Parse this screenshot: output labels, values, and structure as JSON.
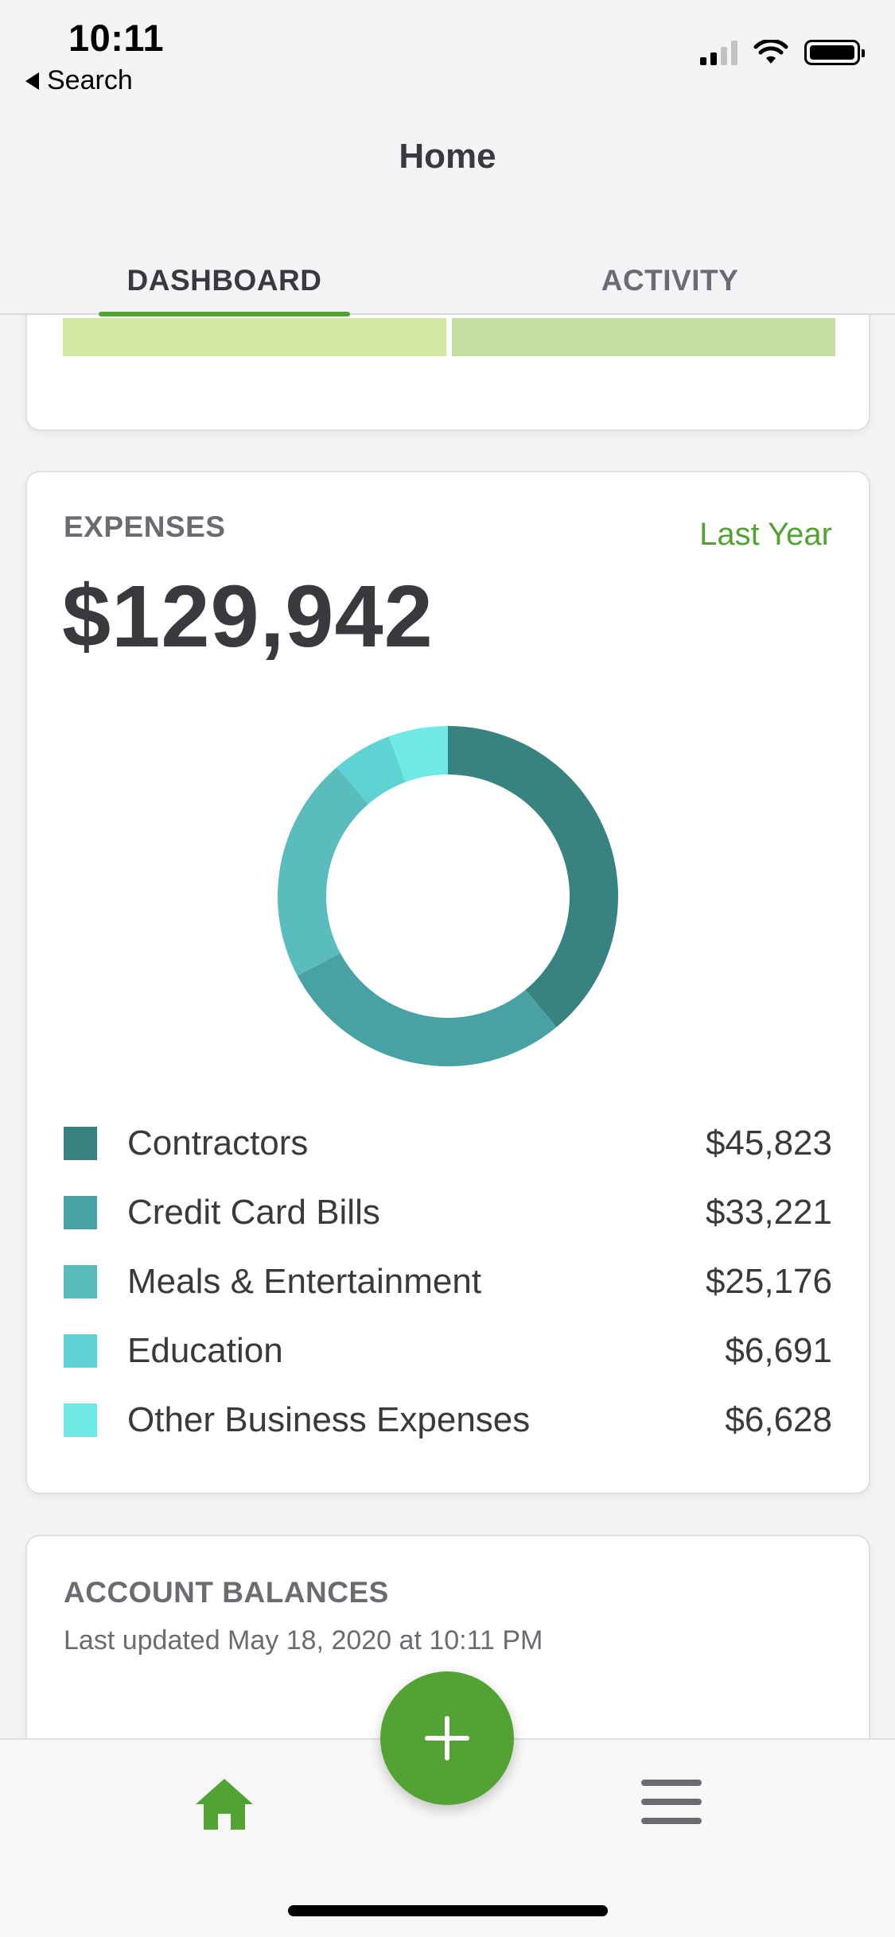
{
  "status_bar": {
    "time": "10:11",
    "back_label": "Search",
    "icons": [
      "signal-icon",
      "wifi-icon",
      "battery-icon"
    ]
  },
  "header": {
    "title": "Home",
    "tabs": [
      {
        "label": "DASHBOARD",
        "selected": true
      },
      {
        "label": "ACTIVITY",
        "selected": false
      }
    ]
  },
  "expenses": {
    "label": "EXPENSES",
    "period": "Last Year",
    "total": "$129,942",
    "categories": [
      {
        "name": "Contractors",
        "amount": "$45,823",
        "value": 45823,
        "color": "#38827f"
      },
      {
        "name": "Credit Card Bills",
        "amount": "$33,221",
        "value": 33221,
        "color": "#48a1a3"
      },
      {
        "name": "Meals & Entertainment",
        "amount": "$25,176",
        "value": 25176,
        "color": "#5bbcbe"
      },
      {
        "name": "Education",
        "amount": "$6,691",
        "value": 6691,
        "color": "#5fd2d4"
      },
      {
        "name": "Other Business Expenses",
        "amount": "$6,628",
        "value": 6628,
        "color": "#6ee9e6"
      }
    ]
  },
  "account_balances": {
    "title": "ACCOUNT BALANCES",
    "last_updated": "Last updated May 18, 2020 at 10:11 PM"
  },
  "bottom_nav": {
    "items": [
      "home-icon",
      "add-button",
      "menu-icon"
    ]
  },
  "colors": {
    "accent": "#53a234",
    "top_bar_left": "#d4eaa2",
    "top_bar_right": "#c4e1a1"
  }
}
